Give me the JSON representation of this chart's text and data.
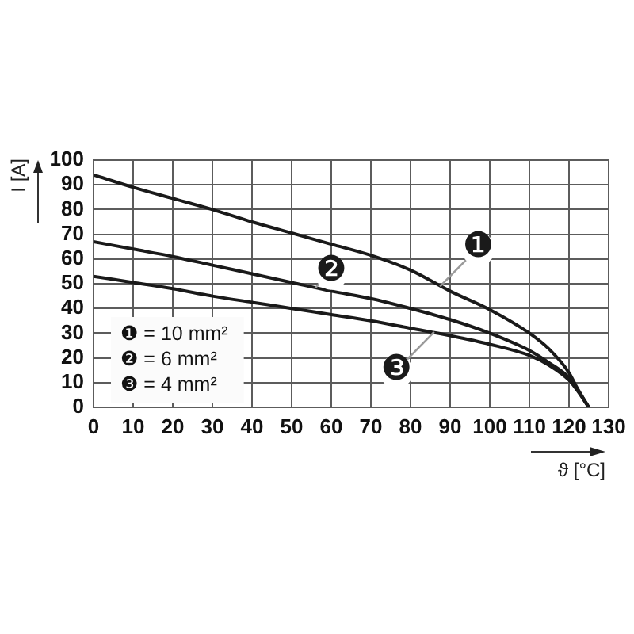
{
  "chart_data": {
    "type": "line",
    "xlabel": "ϑ [°C]",
    "ylabel": "I [A]",
    "x": [
      0,
      10,
      20,
      30,
      40,
      50,
      60,
      70,
      80,
      90,
      100,
      110,
      115,
      120,
      122,
      125
    ],
    "series": [
      {
        "name": "❶",
        "color": "#1a1a1a",
        "values": [
          94,
          89,
          84.5,
          80,
          75,
          70.5,
          66,
          61.5,
          55.5,
          47,
          39.5,
          30,
          23.5,
          14,
          8,
          0
        ]
      },
      {
        "name": "❷",
        "color": "#1a1a1a",
        "values": [
          67,
          64,
          61,
          57.5,
          54,
          50.5,
          47,
          44,
          40,
          35.5,
          30,
          23,
          18,
          12,
          7.5,
          0
        ]
      },
      {
        "name": "❸",
        "color": "#1a1a1a",
        "values": [
          53,
          50.5,
          48,
          45,
          42.5,
          40,
          37.5,
          35,
          32,
          29,
          25.5,
          21,
          17,
          11,
          7,
          0
        ]
      }
    ],
    "xlim": [
      0,
      130
    ],
    "xticks": [
      0,
      10,
      20,
      30,
      40,
      50,
      60,
      70,
      80,
      90,
      100,
      110,
      120,
      130
    ],
    "ylim": [
      0,
      100
    ],
    "yticks": [
      0,
      10,
      20,
      30,
      40,
      50,
      60,
      70,
      80,
      90,
      100
    ],
    "grid": true,
    "marker": "none",
    "line_style": "solid",
    "annotations": [
      "❶ = 10 mm²",
      "❷ = 6 mm²",
      "❸ = 4 mm²"
    ]
  }
}
